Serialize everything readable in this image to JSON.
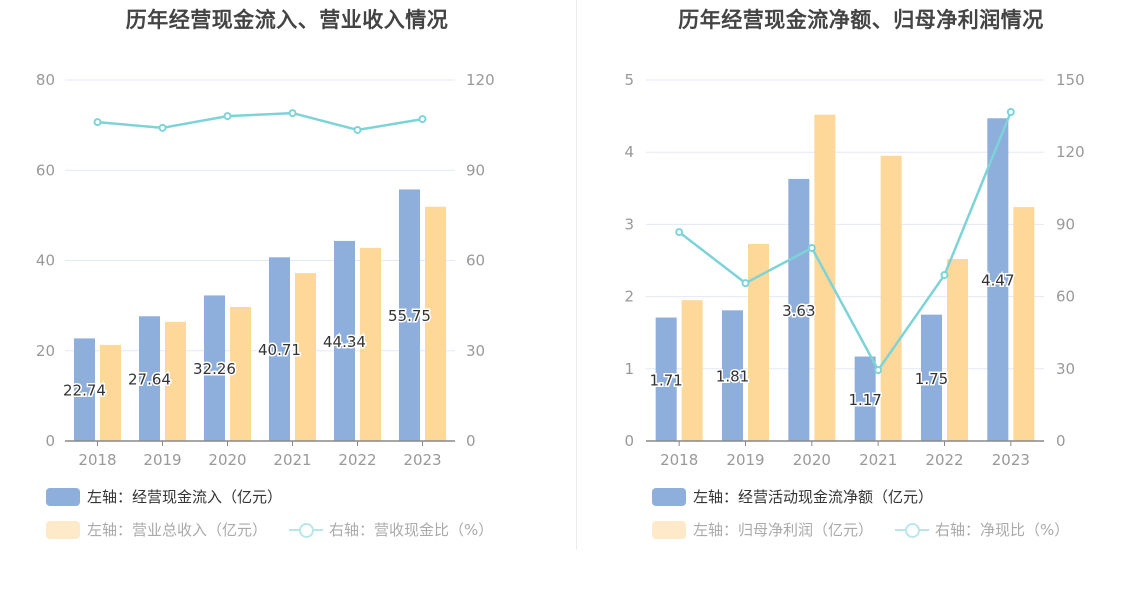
{
  "colors": {
    "bar_primary": "#8eaedb",
    "bar_secondary": "#fed898",
    "line": "#7dd3d8",
    "grid": "#e3e8f5",
    "axis": "#888888",
    "tick_text": "#999999",
    "label_text": "#333333"
  },
  "chart_data": [
    {
      "type": "bar",
      "title": "历年经营现金流入、营业收入情况",
      "categories": [
        "2018",
        "2019",
        "2020",
        "2021",
        "2022",
        "2023"
      ],
      "left_axis": {
        "ticks": [
          "0",
          "20",
          "40",
          "60",
          "80"
        ],
        "ylim": [
          0,
          80
        ]
      },
      "right_axis": {
        "ticks": [
          "0",
          "30",
          "60",
          "90",
          "120"
        ],
        "ylim": [
          0,
          120
        ]
      },
      "grid": true,
      "legend_position": "bottom-left",
      "series": [
        {
          "name": "左轴：经营现金流入（亿元）",
          "kind": "bar",
          "axis": "left",
          "values": [
            22.74,
            27.64,
            32.26,
            40.71,
            44.34,
            55.75
          ],
          "labels": [
            "22.74",
            "27.64",
            "32.26",
            "40.71",
            "44.34",
            "55.75"
          ]
        },
        {
          "name": "左轴：营业总收入（亿元）",
          "kind": "bar",
          "axis": "left",
          "values": [
            21.3,
            26.4,
            29.7,
            37.2,
            42.8,
            51.9
          ]
        },
        {
          "name": "右轴：营收现金比（%）",
          "kind": "line",
          "axis": "right",
          "values": [
            106.0,
            104.1,
            108.0,
            109.0,
            103.4,
            107.0
          ]
        }
      ]
    },
    {
      "type": "bar",
      "title": "历年经营现金流净额、归母净利润情况",
      "categories": [
        "2018",
        "2019",
        "2020",
        "2021",
        "2022",
        "2023"
      ],
      "left_axis": {
        "ticks": [
          "0",
          "1",
          "2",
          "3",
          "4",
          "5"
        ],
        "ylim": [
          0,
          5
        ]
      },
      "right_axis": {
        "ticks": [
          "0",
          "30",
          "60",
          "90",
          "120",
          "150"
        ],
        "ylim": [
          0,
          150
        ]
      },
      "grid": true,
      "legend_position": "bottom-left",
      "series": [
        {
          "name": "左轴：经营活动现金流净额（亿元）",
          "kind": "bar",
          "axis": "left",
          "values": [
            1.71,
            1.81,
            3.63,
            1.17,
            1.75,
            4.47
          ],
          "labels": [
            "1.71",
            "1.81",
            "3.63",
            "1.17",
            "1.75",
            "4.47"
          ]
        },
        {
          "name": "左轴：归母净利润（亿元）",
          "kind": "bar",
          "axis": "left",
          "values": [
            1.95,
            2.73,
            4.52,
            3.95,
            2.52,
            3.24
          ]
        },
        {
          "name": "右轴：净现比（%）",
          "kind": "line",
          "axis": "right",
          "values": [
            86.8,
            65.6,
            80.2,
            29.5,
            69.0,
            136.7
          ]
        }
      ]
    }
  ]
}
